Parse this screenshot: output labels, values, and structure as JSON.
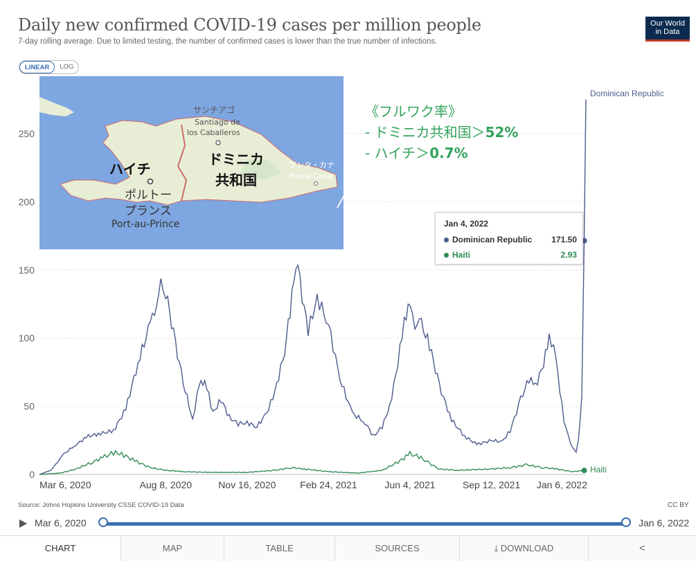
{
  "header": {
    "title": "Daily new confirmed COVID-19 cases per million people",
    "subtitle": "7-day rolling average. Due to limited testing, the number of confirmed cases is lower than the true number of infections.",
    "logo": [
      "Our World",
      "in Data"
    ]
  },
  "toggle": {
    "linear": "LINEAR",
    "log": "LOG"
  },
  "map_labels": {
    "haiti": "ハイチ",
    "port_jp_1": "ポルトー",
    "port_jp_2": "プランス",
    "port_en": "Port-au-Prince",
    "dr_1": "ドミニカ",
    "dr_2": "共和国",
    "santiago_jp": "サンチアゴ",
    "santiago_en_1": "Santiago de",
    "santiago_en_2": "los Caballeros",
    "punta_jp": "プンタ・カナ",
    "punta_en": "Punta Cana"
  },
  "annotation": {
    "line1": "《フルワク率》",
    "line2_prefix": "- ドミニカ共和国＞",
    "line2_value": "52%",
    "line3_prefix": "- ハイチ＞",
    "line3_value": "0.7%"
  },
  "tooltip": {
    "date": "Jan 4, 2022",
    "rows": [
      {
        "name": "Dominican Republic",
        "value": "171.50"
      },
      {
        "name": "Haiti",
        "value": "2.93"
      }
    ]
  },
  "footer": {
    "source": "Source: Johns Hopkins University CSSE COVID-19 Data",
    "license": "CC BY"
  },
  "timeline": {
    "start": "Mar 6, 2020",
    "end": "Jan 6, 2022"
  },
  "tabs": [
    {
      "label": "CHART",
      "icon": ""
    },
    {
      "label": "MAP",
      "icon": ""
    },
    {
      "label": "TABLE",
      "icon": ""
    },
    {
      "label": "SOURCES",
      "icon": ""
    },
    {
      "label": "DOWNLOAD",
      "icon": "download-icon"
    },
    {
      "label": "",
      "icon": "share-icon"
    }
  ],
  "colors": {
    "dominican_republic": "#4c5a8c",
    "haiti": "#2e8b57",
    "accent": "#3a6fb2",
    "annotation": "#33a35c"
  },
  "chart_data": {
    "type": "line",
    "title": "Daily new confirmed COVID-19 cases per million people",
    "subtitle": "7-day rolling average. Due to limited testing, the number of confirmed cases is lower than the true number of infections.",
    "xlabel": "",
    "ylabel": "",
    "ylim": [
      0,
      270
    ],
    "yticks": [
      0,
      50,
      100,
      150,
      200,
      250
    ],
    "xtick_labels": [
      "Mar 6, 2020",
      "Aug 8, 2020",
      "Nov 16, 2020",
      "Feb 24, 2021",
      "Jun 4, 2021",
      "Sep 12, 2021",
      "Jan 6, 2022"
    ],
    "scale": "linear",
    "grid": "horizontal",
    "series": [
      {
        "name": "Dominican Republic",
        "color": "#4c5a8c",
        "points": [
          [
            "2020-03-06",
            0
          ],
          [
            "2020-03-20",
            3
          ],
          [
            "2020-04-05",
            15
          ],
          [
            "2020-04-20",
            22
          ],
          [
            "2020-05-05",
            28
          ],
          [
            "2020-05-20",
            30
          ],
          [
            "2020-06-05",
            32
          ],
          [
            "2020-06-20",
            48
          ],
          [
            "2020-07-05",
            82
          ],
          [
            "2020-07-20",
            110
          ],
          [
            "2020-07-28",
            128
          ],
          [
            "2020-08-02",
            138
          ],
          [
            "2020-08-08",
            135
          ],
          [
            "2020-08-20",
            95
          ],
          [
            "2020-09-01",
            62
          ],
          [
            "2020-09-10",
            40
          ],
          [
            "2020-09-18",
            65
          ],
          [
            "2020-09-25",
            70
          ],
          [
            "2020-10-05",
            45
          ],
          [
            "2020-10-15",
            55
          ],
          [
            "2020-10-25",
            42
          ],
          [
            "2020-11-05",
            37
          ],
          [
            "2020-11-16",
            38
          ],
          [
            "2020-11-28",
            35
          ],
          [
            "2020-12-10",
            45
          ],
          [
            "2020-12-20",
            60
          ],
          [
            "2021-01-01",
            90
          ],
          [
            "2021-01-10",
            130
          ],
          [
            "2021-01-15",
            158
          ],
          [
            "2021-01-20",
            140
          ],
          [
            "2021-01-30",
            105
          ],
          [
            "2021-02-10",
            130
          ],
          [
            "2021-02-24",
            110
          ],
          [
            "2021-03-10",
            70
          ],
          [
            "2021-03-25",
            45
          ],
          [
            "2021-04-10",
            38
          ],
          [
            "2021-04-20",
            28
          ],
          [
            "2021-05-01",
            35
          ],
          [
            "2021-05-10",
            50
          ],
          [
            "2021-05-20",
            80
          ],
          [
            "2021-05-28",
            115
          ],
          [
            "2021-06-04",
            122
          ],
          [
            "2021-06-10",
            110
          ],
          [
            "2021-06-18",
            110
          ],
          [
            "2021-06-28",
            95
          ],
          [
            "2021-07-10",
            65
          ],
          [
            "2021-07-25",
            40
          ],
          [
            "2021-08-10",
            28
          ],
          [
            "2021-08-25",
            22
          ],
          [
            "2021-09-12",
            25
          ],
          [
            "2021-09-25",
            24
          ],
          [
            "2021-10-05",
            32
          ],
          [
            "2021-10-18",
            55
          ],
          [
            "2021-10-28",
            70
          ],
          [
            "2021-11-05",
            65
          ],
          [
            "2021-11-15",
            80
          ],
          [
            "2021-11-22",
            103
          ],
          [
            "2021-11-30",
            85
          ],
          [
            "2021-12-10",
            40
          ],
          [
            "2021-12-18",
            22
          ],
          [
            "2021-12-25",
            17
          ],
          [
            "2021-12-28",
            25
          ],
          [
            "2022-01-01",
            60
          ],
          [
            "2022-01-04",
            171.5
          ],
          [
            "2022-01-06",
            275
          ]
        ]
      },
      {
        "name": "Haiti",
        "color": "#2e8b57",
        "points": [
          [
            "2020-03-06",
            0
          ],
          [
            "2020-04-01",
            1
          ],
          [
            "2020-04-20",
            4
          ],
          [
            "2020-05-10",
            9
          ],
          [
            "2020-05-25",
            13
          ],
          [
            "2020-06-05",
            16
          ],
          [
            "2020-06-15",
            15
          ],
          [
            "2020-07-01",
            10
          ],
          [
            "2020-07-20",
            5
          ],
          [
            "2020-08-08",
            3
          ],
          [
            "2020-09-01",
            2
          ],
          [
            "2020-10-01",
            1.5
          ],
          [
            "2020-11-16",
            1.5
          ],
          [
            "2020-12-20",
            3
          ],
          [
            "2021-01-10",
            5
          ],
          [
            "2021-01-25",
            4
          ],
          [
            "2021-02-24",
            2
          ],
          [
            "2021-04-01",
            1
          ],
          [
            "2021-05-01",
            3
          ],
          [
            "2021-05-20",
            9
          ],
          [
            "2021-06-04",
            15
          ],
          [
            "2021-06-15",
            13
          ],
          [
            "2021-06-28",
            8
          ],
          [
            "2021-07-10",
            4
          ],
          [
            "2021-08-01",
            3
          ],
          [
            "2021-09-12",
            4
          ],
          [
            "2021-10-05",
            5
          ],
          [
            "2021-10-25",
            7
          ],
          [
            "2021-11-15",
            5
          ],
          [
            "2021-12-01",
            4
          ],
          [
            "2021-12-20",
            2
          ],
          [
            "2022-01-04",
            2.93
          ],
          [
            "2022-01-06",
            2
          ]
        ]
      }
    ],
    "end_labels": [
      "Dominican Republic",
      "Haiti"
    ]
  }
}
